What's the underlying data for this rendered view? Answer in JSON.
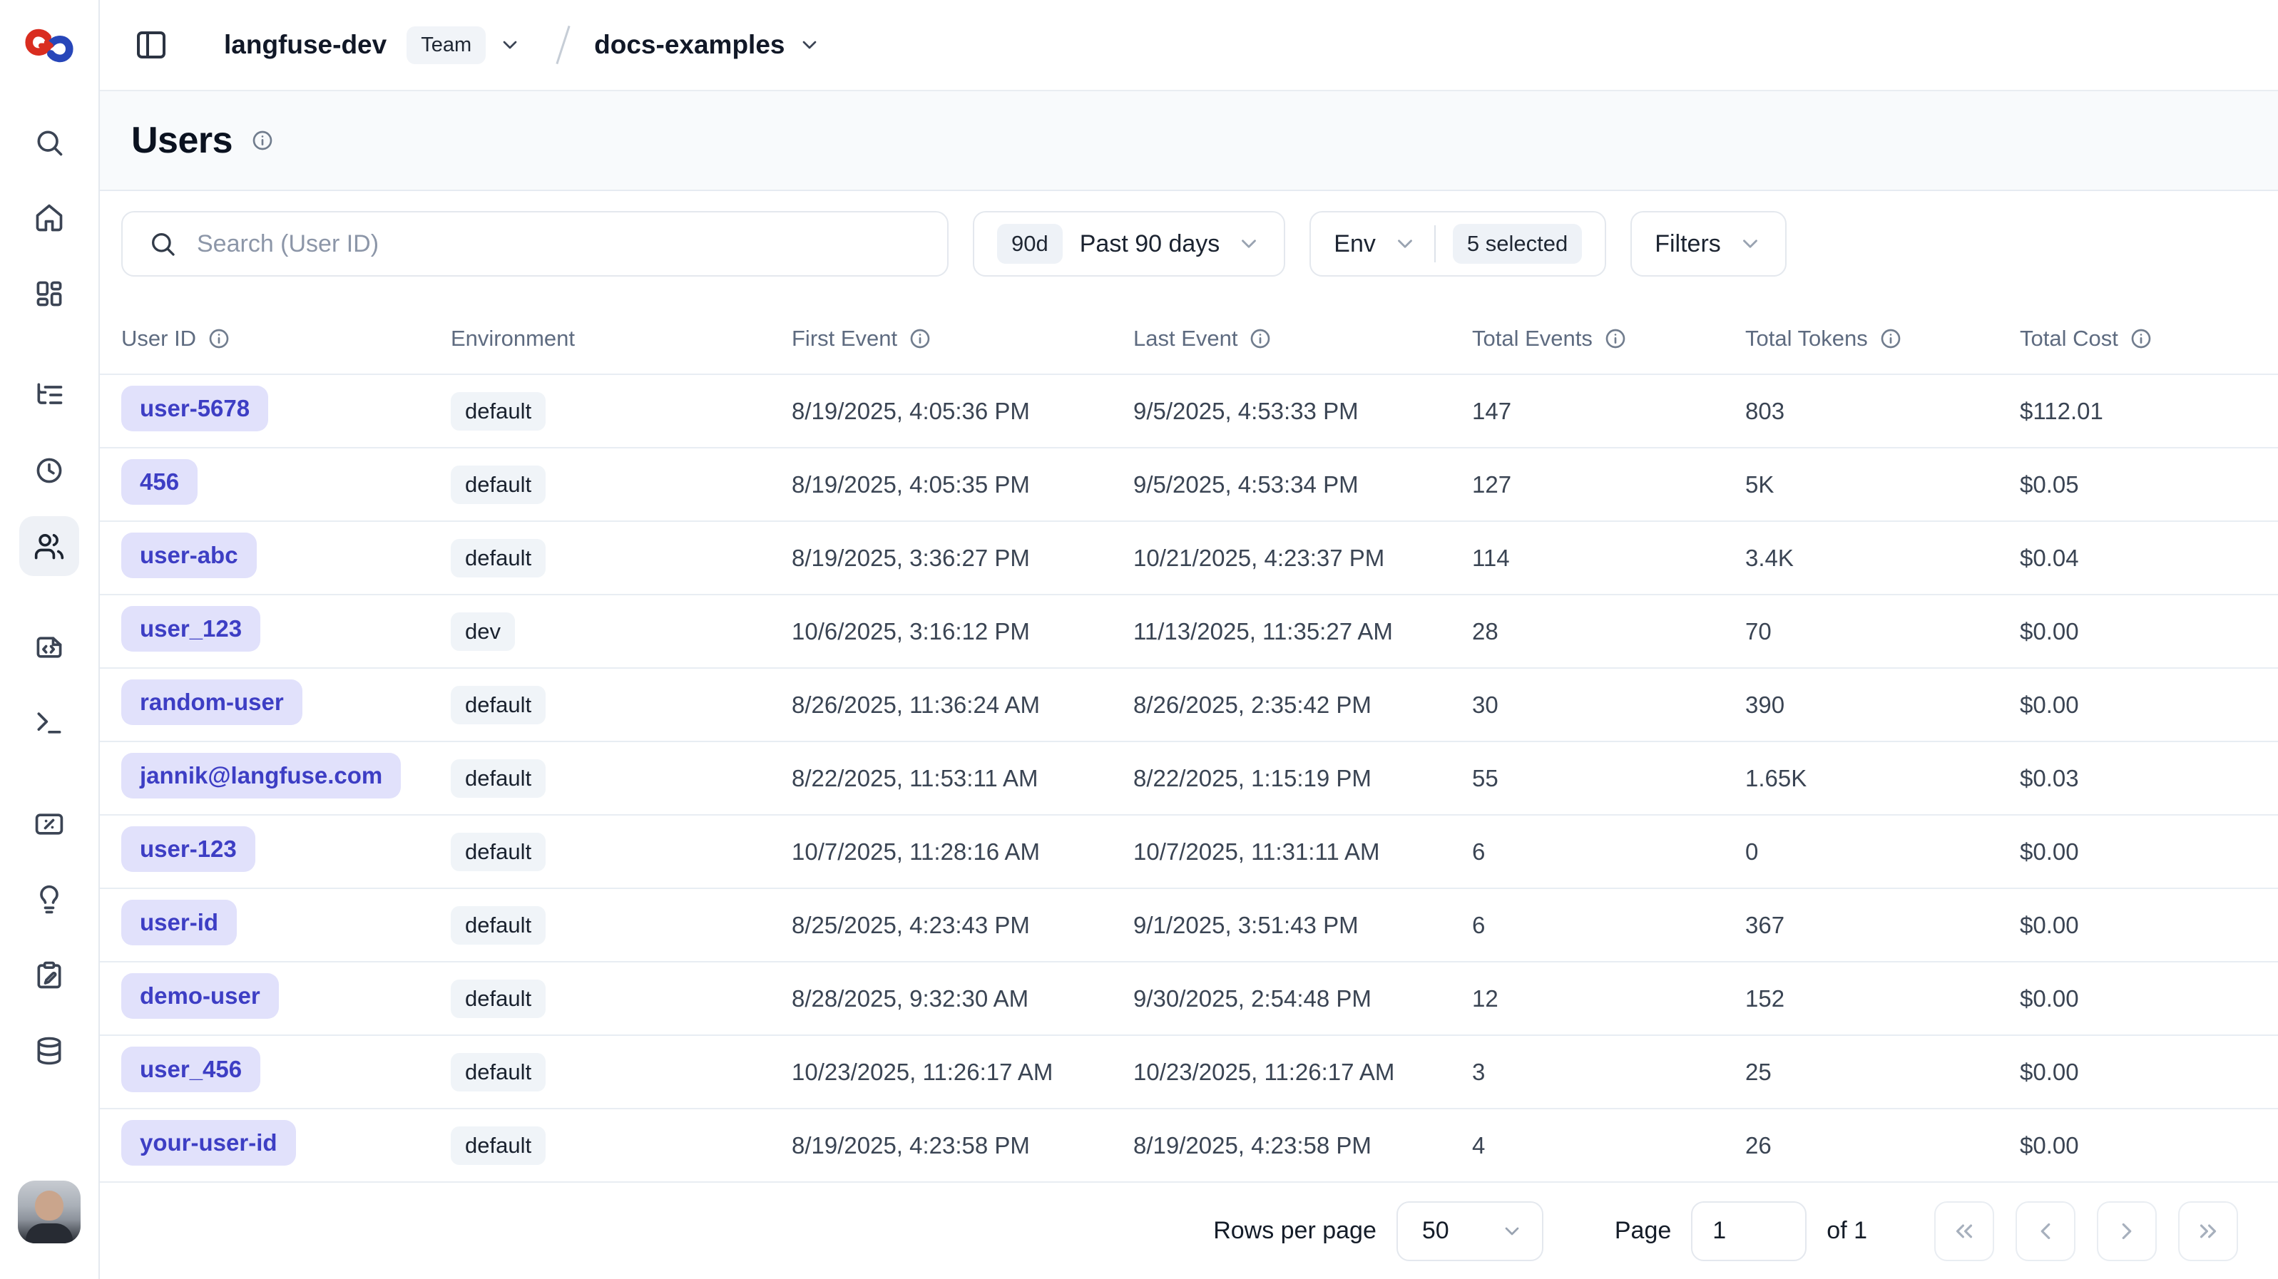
{
  "header": {
    "org_name": "langfuse-dev",
    "org_badge": "Team",
    "project_name": "docs-examples"
  },
  "page": {
    "title": "Users"
  },
  "sidebar": {
    "active": "users",
    "groups": [
      [
        {
          "id": "search",
          "icon": "search"
        },
        {
          "id": "home",
          "icon": "home"
        },
        {
          "id": "dashboards",
          "icon": "layout-dashboard"
        }
      ],
      [
        {
          "id": "tracing",
          "icon": "list-tree"
        },
        {
          "id": "sessions",
          "icon": "clock"
        },
        {
          "id": "users",
          "icon": "users"
        }
      ],
      [
        {
          "id": "prompts",
          "icon": "file-code"
        },
        {
          "id": "playground",
          "icon": "terminal"
        }
      ],
      [
        {
          "id": "evaluation",
          "icon": "percent-card"
        },
        {
          "id": "insights",
          "icon": "lightbulb"
        },
        {
          "id": "annotation",
          "icon": "clipboard-pen"
        },
        {
          "id": "datasets",
          "icon": "database"
        }
      ]
    ]
  },
  "filters": {
    "search_placeholder": "Search (User ID)",
    "time_range": {
      "badge": "90d",
      "label": "Past 90 days"
    },
    "env": {
      "label": "Env",
      "selected_badge": "5 selected"
    },
    "filters_label": "Filters"
  },
  "table": {
    "columns": [
      {
        "label": "User ID",
        "info": true
      },
      {
        "label": "Environment",
        "info": false
      },
      {
        "label": "First Event",
        "info": true
      },
      {
        "label": "Last Event",
        "info": true
      },
      {
        "label": "Total Events",
        "info": true
      },
      {
        "label": "Total Tokens",
        "info": true
      },
      {
        "label": "Total Cost",
        "info": true
      }
    ],
    "rows": [
      {
        "user_id": "user-5678",
        "environment": "default",
        "first_event": "8/19/2025, 4:05:36 PM",
        "last_event": "9/5/2025, 4:53:33 PM",
        "total_events": "147",
        "total_tokens": "803",
        "total_cost": "$112.01"
      },
      {
        "user_id": "456",
        "environment": "default",
        "first_event": "8/19/2025, 4:05:35 PM",
        "last_event": "9/5/2025, 4:53:34 PM",
        "total_events": "127",
        "total_tokens": "5K",
        "total_cost": "$0.05"
      },
      {
        "user_id": "user-abc",
        "environment": "default",
        "first_event": "8/19/2025, 3:36:27 PM",
        "last_event": "10/21/2025, 4:23:37 PM",
        "total_events": "114",
        "total_tokens": "3.4K",
        "total_cost": "$0.04"
      },
      {
        "user_id": "user_123",
        "environment": "dev",
        "first_event": "10/6/2025, 3:16:12 PM",
        "last_event": "11/13/2025, 11:35:27 AM",
        "total_events": "28",
        "total_tokens": "70",
        "total_cost": "$0.00"
      },
      {
        "user_id": "random-user",
        "environment": "default",
        "first_event": "8/26/2025, 11:36:24 AM",
        "last_event": "8/26/2025, 2:35:42 PM",
        "total_events": "30",
        "total_tokens": "390",
        "total_cost": "$0.00"
      },
      {
        "user_id": "jannik@langfuse.com",
        "environment": "default",
        "first_event": "8/22/2025, 11:53:11 AM",
        "last_event": "8/22/2025, 1:15:19 PM",
        "total_events": "55",
        "total_tokens": "1.65K",
        "total_cost": "$0.03"
      },
      {
        "user_id": "user-123",
        "environment": "default",
        "first_event": "10/7/2025, 11:28:16 AM",
        "last_event": "10/7/2025, 11:31:11 AM",
        "total_events": "6",
        "total_tokens": "0",
        "total_cost": "$0.00"
      },
      {
        "user_id": "user-id",
        "environment": "default",
        "first_event": "8/25/2025, 4:23:43 PM",
        "last_event": "9/1/2025, 3:51:43 PM",
        "total_events": "6",
        "total_tokens": "367",
        "total_cost": "$0.00"
      },
      {
        "user_id": "demo-user",
        "environment": "default",
        "first_event": "8/28/2025, 9:32:30 AM",
        "last_event": "9/30/2025, 2:54:48 PM",
        "total_events": "12",
        "total_tokens": "152",
        "total_cost": "$0.00"
      },
      {
        "user_id": "user_456",
        "environment": "default",
        "first_event": "10/23/2025, 11:26:17 AM",
        "last_event": "10/23/2025, 11:26:17 AM",
        "total_events": "3",
        "total_tokens": "25",
        "total_cost": "$0.00"
      },
      {
        "user_id": "your-user-id",
        "environment": "default",
        "first_event": "8/19/2025, 4:23:58 PM",
        "last_event": "8/19/2025, 4:23:58 PM",
        "total_events": "4",
        "total_tokens": "26",
        "total_cost": "$0.00"
      }
    ]
  },
  "pagination": {
    "rows_per_page_label": "Rows per page",
    "rows_per_page_value": "50",
    "page_label": "Page",
    "page_value": "1",
    "of_label": "of 1",
    "nav_buttons": [
      {
        "id": "first-page",
        "icon": "chevrons-left"
      },
      {
        "id": "previous-page",
        "icon": "chevron-left"
      },
      {
        "id": "next-page",
        "icon": "chevron-right"
      },
      {
        "id": "last-page",
        "icon": "chevrons-right"
      }
    ]
  },
  "colors": {
    "user_badge_bg": "#e1e1fb",
    "user_badge_text": "#3d3ec4",
    "gray_badge_bg": "#f0f4f8",
    "title_band_bg": "#f8fafc",
    "border": "#e4e9ef",
    "muted_header_text": "#5e6b80",
    "logo_red": "#d92d20",
    "logo_blue": "#2746b9"
  }
}
